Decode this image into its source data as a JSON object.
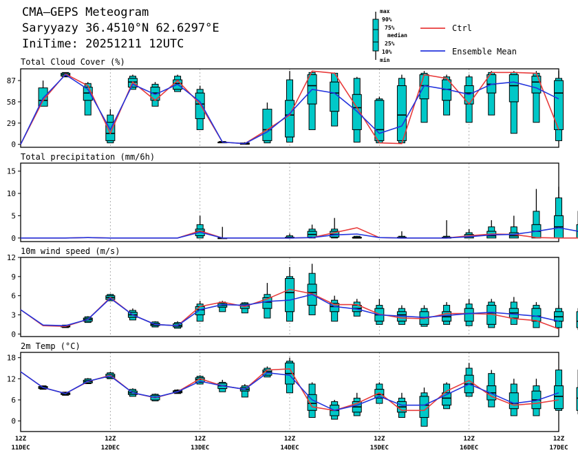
{
  "header": {
    "title": "CMA—GEPS Meteogram",
    "location": "Saryyazy 36.4510°N 62.6297°E",
    "init": "IniTime: 20251211 12UTC"
  },
  "legend": {
    "box_labels": [
      "max",
      "90%",
      "75%",
      "median",
      "25%",
      "10%",
      "min"
    ],
    "ctrl": "Ctrl",
    "mean": "Ensemble Mean",
    "ctrl_color": "#e83a3a",
    "mean_color": "#2233dd",
    "box_color": "#00c8c8"
  },
  "x_axis": {
    "ticks": [
      {
        "hour": "12Z",
        "date": "11DEC"
      },
      {
        "hour": "12Z",
        "date": "12DEC"
      },
      {
        "hour": "12Z",
        "date": "13DEC"
      },
      {
        "hour": "12Z",
        "date": "14DEC"
      },
      {
        "hour": "12Z",
        "date": "15DEC"
      },
      {
        "hour": "12Z",
        "date": "16DEC"
      },
      {
        "hour": "12Z",
        "date": "17DEC"
      }
    ]
  },
  "chart_data": [
    {
      "type": "boxplot-meteogram",
      "title": "Total Cloud Cover (%)",
      "ylim": [
        -4,
        103
      ],
      "yticks": [
        0,
        29,
        58,
        87
      ],
      "boxes": [
        [
          1,
          60,
          77,
          52,
          70,
          55,
          87
        ],
        [
          2,
          95,
          97,
          93,
          98,
          92,
          98
        ],
        [
          3,
          70,
          78,
          60,
          83,
          40,
          85
        ],
        [
          4,
          15,
          30,
          5,
          40,
          2,
          48
        ],
        [
          5,
          85,
          90,
          78,
          93,
          75,
          95
        ],
        [
          6,
          70,
          78,
          60,
          82,
          52,
          85
        ],
        [
          7,
          83,
          88,
          75,
          93,
          72,
          95
        ],
        [
          8,
          55,
          70,
          35,
          75,
          20,
          80
        ],
        [
          9,
          3,
          3,
          2,
          4,
          2,
          4
        ],
        [
          10,
          1,
          2,
          0,
          2,
          0,
          3
        ],
        [
          11,
          20,
          48,
          5,
          48,
          2,
          57
        ],
        [
          12,
          40,
          60,
          10,
          88,
          3,
          100
        ],
        [
          13,
          80,
          95,
          55,
          98,
          20,
          100
        ],
        [
          14,
          70,
          85,
          45,
          97,
          25,
          98
        ],
        [
          15,
          50,
          68,
          20,
          90,
          3,
          92
        ],
        [
          16,
          20,
          60,
          5,
          62,
          2,
          65
        ],
        [
          17,
          40,
          80,
          5,
          90,
          2,
          95
        ],
        [
          18,
          80,
          95,
          62,
          97,
          30,
          100
        ],
        [
          19,
          75,
          88,
          60,
          92,
          40,
          95
        ],
        [
          20,
          70,
          80,
          55,
          92,
          30,
          95
        ],
        [
          21,
          82,
          95,
          70,
          98,
          40,
          100
        ],
        [
          22,
          80,
          95,
          58,
          98,
          15,
          100
        ],
        [
          23,
          85,
          93,
          70,
          97,
          30,
          100
        ],
        [
          24,
          70,
          87,
          20,
          90,
          5,
          100
        ]
      ],
      "ctrl": [
        0,
        60,
        96,
        80,
        15,
        85,
        60,
        87,
        55,
        3,
        1,
        20,
        40,
        100,
        97,
        50,
        2,
        1,
        95,
        90,
        55,
        98,
        98,
        97,
        20
      ],
      "mean": [
        0,
        63,
        95,
        75,
        20,
        82,
        68,
        82,
        58,
        3,
        1,
        17,
        42,
        75,
        70,
        45,
        15,
        25,
        80,
        75,
        68,
        82,
        85,
        77,
        62
      ]
    },
    {
      "type": "boxplot-meteogram",
      "title": "Total precipitation (mm/6h)",
      "ylim": [
        -0.8,
        16.8
      ],
      "yticks": [
        0,
        5,
        10,
        15
      ],
      "boxes": [
        [
          8,
          1.5,
          2,
          0.5,
          3,
          0,
          5
        ],
        [
          9,
          0,
          0,
          0,
          0,
          0,
          2.5
        ],
        [
          12,
          0,
          0.2,
          0,
          0.5,
          0,
          1
        ],
        [
          13,
          0.8,
          1.5,
          0.2,
          2,
          0,
          3
        ],
        [
          14,
          0.8,
          1.5,
          0.2,
          2,
          0,
          4.5
        ],
        [
          15,
          0,
          0.2,
          0,
          0.4,
          0,
          0.5
        ],
        [
          17,
          0,
          0.2,
          0,
          0.4,
          0,
          1.5
        ],
        [
          19,
          0,
          0.2,
          0,
          0.4,
          0,
          4
        ],
        [
          20,
          0.3,
          0.8,
          0,
          1.2,
          0,
          2
        ],
        [
          21,
          0.5,
          1.5,
          0,
          2.5,
          0,
          4
        ],
        [
          22,
          0.5,
          1.2,
          0,
          2.5,
          0,
          5
        ],
        [
          23,
          1.5,
          3,
          0,
          6,
          0,
          11
        ],
        [
          24,
          2.5,
          5,
          0,
          9,
          0,
          11.5
        ],
        [
          25,
          1.5,
          3,
          0,
          6,
          0,
          6
        ]
      ],
      "ctrl": [
        0,
        0,
        0,
        0.1,
        0,
        0,
        0,
        0,
        1.6,
        0,
        0,
        0,
        0,
        0.1,
        1.2,
        2.3,
        0.1,
        0,
        0,
        0,
        0.5,
        0.9,
        0.8,
        0.1,
        0,
        0
      ],
      "mean": [
        0,
        0,
        0,
        0.1,
        0,
        0,
        0,
        0,
        1.3,
        0,
        0,
        0,
        0,
        0.1,
        0.7,
        0.9,
        0.1,
        0,
        0,
        0,
        0.3,
        0.7,
        0.8,
        1.5,
        2.3,
        1.4
      ]
    },
    {
      "type": "boxplot-meteogram",
      "title": "10m wind speed (m/s)",
      "ylim": [
        -0.4,
        12
      ],
      "yticks": [
        0,
        3,
        6,
        9,
        12
      ],
      "boxes": [
        [
          2,
          1.2,
          1.3,
          1.1,
          1.4,
          1.0,
          1.4
        ],
        [
          3,
          2.3,
          2.5,
          2.0,
          2.7,
          1.8,
          2.8
        ],
        [
          4,
          5.7,
          6.0,
          5.4,
          6.2,
          5.2,
          6.3
        ],
        [
          5,
          3.0,
          3.4,
          2.6,
          3.7,
          2.2,
          4.0
        ],
        [
          6,
          1.5,
          1.7,
          1.3,
          1.9,
          1.1,
          2.0
        ],
        [
          7,
          1.3,
          1.6,
          1.1,
          1.8,
          0.9,
          2.0
        ],
        [
          8,
          3.8,
          4.3,
          3.0,
          4.7,
          2.0,
          5.2
        ],
        [
          9,
          4.5,
          4.8,
          4.2,
          5.0,
          3.5,
          5.2
        ],
        [
          10,
          4.4,
          4.7,
          4.0,
          4.9,
          3.3,
          5.0
        ],
        [
          11,
          5.0,
          5.7,
          4.0,
          6.2,
          2.5,
          8.0
        ],
        [
          12,
          6.5,
          8.7,
          3.5,
          9.0,
          2.0,
          10.5
        ],
        [
          13,
          6.5,
          7.8,
          4.5,
          9.5,
          3.0,
          11.0
        ],
        [
          14,
          4.3,
          4.8,
          3.5,
          5.3,
          2.0,
          6.0
        ],
        [
          15,
          4.0,
          4.5,
          3.5,
          5.0,
          2.8,
          5.5
        ],
        [
          16,
          3.0,
          4.0,
          2.0,
          4.5,
          1.5,
          5.5
        ],
        [
          17,
          3.0,
          3.5,
          2.0,
          4.0,
          1.5,
          4.5
        ],
        [
          18,
          2.5,
          3.5,
          1.5,
          4.0,
          1.2,
          4.5
        ],
        [
          19,
          2.7,
          3.5,
          2.0,
          4.5,
          1.5,
          5.0
        ],
        [
          20,
          3.2,
          4.0,
          2.0,
          4.7,
          1.3,
          5.5
        ],
        [
          21,
          3.3,
          4.5,
          1.5,
          5.0,
          1.0,
          5.5
        ],
        [
          22,
          3.3,
          4.0,
          2.5,
          5.0,
          1.5,
          5.8
        ],
        [
          23,
          2.8,
          4.0,
          2.0,
          4.5,
          1.0,
          5.0
        ],
        [
          24,
          2.7,
          3.5,
          2.0,
          4.0,
          1.0,
          4.5
        ],
        [
          25,
          2.0,
          3.5,
          1.0,
          4.0,
          0.7,
          4.5
        ]
      ],
      "ctrl": [
        3.8,
        1.3,
        1.2,
        2.3,
        5.7,
        3.0,
        1.5,
        1.3,
        4.3,
        5.0,
        4.3,
        5.5,
        7.0,
        6.3,
        4.6,
        4.6,
        3.1,
        2.5,
        2.4,
        3.2,
        3.2,
        3.1,
        2.4,
        2.1,
        0.8
      ],
      "mean": [
        3.8,
        1.4,
        1.3,
        2.3,
        5.6,
        3.0,
        1.5,
        1.3,
        3.8,
        4.6,
        4.5,
        5.1,
        5.3,
        6.2,
        4.3,
        3.9,
        3.0,
        2.8,
        2.6,
        2.9,
        3.2,
        3.4,
        3.1,
        2.8,
        2.0
      ]
    },
    {
      "type": "boxplot-meteogram",
      "title": "2m Temp (°C)",
      "ylim": [
        -3,
        19.5
      ],
      "yticks": [
        0,
        6,
        12,
        18
      ],
      "boxes": [
        [
          1,
          9.5,
          9.8,
          9.2,
          10.0,
          9.0,
          10.0
        ],
        [
          2,
          7.8,
          8.0,
          7.5,
          8.2,
          7.3,
          8.3
        ],
        [
          3,
          11.2,
          11.6,
          10.8,
          12.0,
          10.6,
          12.2
        ],
        [
          4,
          12.8,
          13.3,
          12.3,
          13.7,
          12.0,
          14.0
        ],
        [
          5,
          8.0,
          8.5,
          7.5,
          9.0,
          7.0,
          9.3
        ],
        [
          6,
          6.8,
          7.3,
          6.0,
          7.6,
          5.7,
          7.8
        ],
        [
          7,
          8.3,
          8.6,
          8.0,
          8.8,
          7.8,
          9.0
        ],
        [
          8,
          11.8,
          12.3,
          11.0,
          12.7,
          10.5,
          13.0
        ],
        [
          9,
          10.0,
          10.7,
          9.2,
          11.0,
          8.3,
          11.7
        ],
        [
          10,
          9.0,
          9.5,
          8.5,
          10.0,
          6.8,
          10.5
        ],
        [
          11,
          14.0,
          14.5,
          13.0,
          15.0,
          12.5,
          15.5
        ],
        [
          12,
          13.5,
          16.5,
          10.5,
          17.0,
          8.0,
          18.0
        ],
        [
          13,
          5.0,
          7.5,
          3.0,
          10.5,
          1.0,
          11.0
        ],
        [
          14,
          3.0,
          4.5,
          1.5,
          5.5,
          0.5,
          6.0
        ],
        [
          15,
          4.0,
          5.5,
          2.5,
          6.5,
          1.5,
          8.0
        ],
        [
          16,
          7.5,
          9.0,
          6.5,
          10.5,
          5.0,
          11.0
        ],
        [
          17,
          4.0,
          5.5,
          2.5,
          6.5,
          1.0,
          8.0
        ],
        [
          18,
          4.5,
          7.0,
          1.0,
          8.0,
          -1.5,
          9.5
        ],
        [
          19,
          6.5,
          8.0,
          4.5,
          10.5,
          3.5,
          11.0
        ],
        [
          20,
          10.5,
          13.0,
          8.0,
          15.0,
          7.0,
          16.5
        ],
        [
          21,
          8.0,
          10.0,
          6.0,
          13.5,
          4.0,
          14.5
        ],
        [
          22,
          5.0,
          8.0,
          3.5,
          10.5,
          1.5,
          12.0
        ],
        [
          23,
          6.0,
          8.5,
          3.5,
          10.0,
          1.5,
          12.0
        ],
        [
          24,
          7.0,
          10.0,
          3.5,
          14.5,
          3.0,
          14.5
        ],
        [
          25,
          6.5,
          9.5,
          3.0,
          14.5,
          2.0,
          14.5
        ]
      ],
      "ctrl": [
        14.0,
        9.5,
        7.8,
        11.2,
        13.0,
        8.0,
        6.6,
        8.3,
        12.0,
        10.0,
        9.0,
        14.5,
        14.8,
        4.0,
        3.0,
        5.0,
        8.0,
        3.0,
        3.0,
        8.5,
        11.5,
        7.0,
        4.5,
        5.0,
        6.0
      ],
      "mean": [
        14.0,
        9.5,
        7.8,
        11.3,
        12.8,
        8.0,
        6.7,
        8.3,
        11.3,
        10.0,
        9.0,
        13.7,
        13.0,
        6.0,
        3.0,
        4.5,
        7.0,
        4.5,
        4.5,
        7.5,
        10.5,
        7.8,
        5.0,
        5.8,
        8.0
      ]
    }
  ]
}
